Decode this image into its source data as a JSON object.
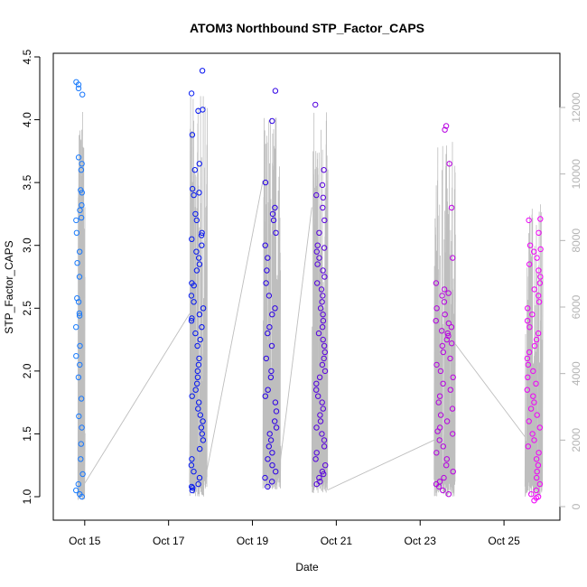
{
  "chart_data": {
    "type": "scatter",
    "title": "ATOM3 Northbound STP_Factor_CAPS",
    "xlabel": "Date",
    "ylabel": "STP_Factor_CAPS",
    "ylim": [
      0.95,
      4.5
    ],
    "y_ticks": [
      1.0,
      1.5,
      2.0,
      2.5,
      3.0,
      3.5,
      4.0,
      4.5
    ],
    "y_tick_labels": [
      "1.0",
      "1.5",
      "2.0",
      "2.5",
      "3.0",
      "3.5",
      "4.0",
      "4.5"
    ],
    "xlim": [
      "2024-10-14T06:00",
      "2024-10-26T08:00"
    ],
    "x_ticks": [
      "2024-10-15",
      "2024-10-17",
      "2024-10-19",
      "2024-10-21",
      "2024-10-23",
      "2024-10-25"
    ],
    "x_tick_labels": [
      "Oct 15",
      "Oct 17",
      "Oct 19",
      "Oct 21",
      "Oct 23",
      "Oct 25"
    ],
    "y2lim": [
      0,
      12600
    ],
    "y2_ticks": [
      0,
      2000,
      4000,
      6000,
      8000,
      10000,
      12000
    ],
    "y2_tick_labels": [
      "0",
      "2000",
      "4000",
      "6000",
      "8000",
      "10000",
      "12000"
    ],
    "grid": false,
    "series": [
      {
        "role": "points",
        "color_gradient": [
          "#1e90ff",
          "#0000ee",
          "#9400d3",
          "#ff00ff"
        ],
        "clusters": [
          {
            "start": "2024-10-14T19:00",
            "end": "2024-10-14T23:00",
            "values": [
              1.0,
              1.02,
              1.05,
              1.1,
              1.18,
              1.3,
              1.42,
              1.55,
              1.64,
              1.78,
              1.95,
              2.05,
              2.12,
              2.2,
              2.35,
              2.44,
              2.46,
              2.55,
              2.58,
              2.75,
              2.86,
              2.95,
              3.1,
              3.2,
              3.22,
              3.28,
              3.32,
              3.42,
              3.44,
              3.6,
              3.65,
              3.7,
              4.2,
              4.25,
              4.28,
              4.3
            ]
          },
          {
            "start": "2024-10-17T13:00",
            "end": "2024-10-17T20:00",
            "values": [
              1.05,
              1.07,
              1.08,
              1.1,
              1.15,
              1.2,
              1.25,
              1.3,
              1.38,
              1.45,
              1.5,
              1.55,
              1.6,
              1.65,
              1.7,
              1.75,
              1.8,
              1.85,
              1.9,
              1.95,
              2.0,
              2.05,
              2.1,
              2.2,
              2.25,
              2.3,
              2.35,
              2.4,
              2.42,
              2.45,
              2.5,
              2.55,
              2.6,
              2.68,
              2.7,
              2.8,
              2.85,
              2.9,
              2.95,
              3.0,
              3.05,
              3.08,
              3.1,
              3.2,
              3.25,
              3.4,
              3.42,
              3.45,
              3.6,
              3.65,
              3.88,
              4.07,
              4.08,
              4.21,
              4.39
            ]
          },
          {
            "start": "2024-10-19T07:00",
            "end": "2024-10-19T14:00",
            "values": [
              1.08,
              1.12,
              1.15,
              1.2,
              1.25,
              1.3,
              1.35,
              1.4,
              1.45,
              1.5,
              1.55,
              1.6,
              1.68,
              1.75,
              1.8,
              1.85,
              1.95,
              2.0,
              2.1,
              2.2,
              2.3,
              2.35,
              2.45,
              2.5,
              2.6,
              2.7,
              2.8,
              2.9,
              3.0,
              3.1,
              3.2,
              3.25,
              3.3,
              3.5,
              3.99,
              4.23
            ]
          },
          {
            "start": "2024-10-20T12:00",
            "end": "2024-10-20T18:00",
            "values": [
              1.1,
              1.12,
              1.15,
              1.18,
              1.2,
              1.25,
              1.3,
              1.35,
              1.4,
              1.45,
              1.5,
              1.55,
              1.6,
              1.65,
              1.7,
              1.75,
              1.8,
              1.85,
              1.9,
              1.95,
              2.0,
              2.05,
              2.1,
              2.15,
              2.2,
              2.25,
              2.3,
              2.35,
              2.4,
              2.45,
              2.5,
              2.55,
              2.6,
              2.65,
              2.7,
              2.75,
              2.8,
              2.85,
              2.9,
              2.95,
              2.98,
              3.0,
              3.1,
              3.2,
              3.3,
              3.38,
              3.4,
              3.48,
              3.6,
              4.12
            ]
          },
          {
            "start": "2024-10-23T09:00",
            "end": "2024-10-23T19:00",
            "values": [
              1.02,
              1.05,
              1.08,
              1.1,
              1.12,
              1.15,
              1.2,
              1.25,
              1.3,
              1.35,
              1.4,
              1.45,
              1.5,
              1.52,
              1.55,
              1.6,
              1.65,
              1.7,
              1.75,
              1.8,
              1.85,
              1.9,
              1.95,
              2.0,
              2.05,
              2.1,
              2.15,
              2.2,
              2.22,
              2.25,
              2.28,
              2.3,
              2.32,
              2.35,
              2.38,
              2.4,
              2.45,
              2.5,
              2.55,
              2.6,
              2.62,
              2.65,
              2.7,
              2.9,
              3.3,
              3.65,
              3.92,
              3.95
            ]
          },
          {
            "start": "2024-10-25T13:00",
            "end": "2024-10-25T21:00",
            "values": [
              0.97,
              0.99,
              1.0,
              1.02,
              1.05,
              1.1,
              1.15,
              1.2,
              1.25,
              1.3,
              1.35,
              1.4,
              1.45,
              1.5,
              1.55,
              1.6,
              1.65,
              1.7,
              1.75,
              1.8,
              1.85,
              1.9,
              1.95,
              2.0,
              2.05,
              2.1,
              2.15,
              2.2,
              2.25,
              2.3,
              2.35,
              2.4,
              2.45,
              2.5,
              2.55,
              2.6,
              2.65,
              2.7,
              2.75,
              2.8,
              2.85,
              2.9,
              2.95,
              2.97,
              3.0,
              3.1,
              3.2,
              3.21
            ]
          }
        ]
      },
      {
        "role": "line",
        "axis": "right",
        "color": "#bebebe",
        "clusters": [
          {
            "start": "2024-10-14T20:00",
            "end": "2024-10-15T00:00",
            "min": 200,
            "max": 11900
          },
          {
            "start": "2024-10-17T12:00",
            "end": "2024-10-17T22:00",
            "min": 300,
            "max": 12400
          },
          {
            "start": "2024-10-19T06:00",
            "end": "2024-10-19T16:00",
            "min": 500,
            "max": 12100
          },
          {
            "start": "2024-10-20T10:00",
            "end": "2024-10-20T19:00",
            "min": 400,
            "max": 11900
          },
          {
            "start": "2024-10-23T08:00",
            "end": "2024-10-23T20:00",
            "min": 300,
            "max": 11000
          },
          {
            "start": "2024-10-25T12:00",
            "end": "2024-10-25T22:00",
            "min": 300,
            "max": 9300
          }
        ],
        "bridges": [
          {
            "x": [
              "2024-10-15T00:00",
              "2024-10-17T12:00"
            ],
            "y": [
              700,
              5800
            ]
          },
          {
            "x": [
              "2024-10-17T22:00",
              "2024-10-19T06:00"
            ],
            "y": [
              1100,
              9800
            ]
          },
          {
            "x": [
              "2024-10-19T16:00",
              "2024-10-20T10:00"
            ],
            "y": [
              1400,
              9000
            ]
          },
          {
            "x": [
              "2024-10-20T19:00",
              "2024-10-23T08:00"
            ],
            "y": [
              500,
              2000
            ]
          },
          {
            "x": [
              "2024-10-23T20:00",
              "2024-10-25T12:00"
            ],
            "y": [
              4900,
              2100
            ]
          }
        ]
      }
    ]
  }
}
